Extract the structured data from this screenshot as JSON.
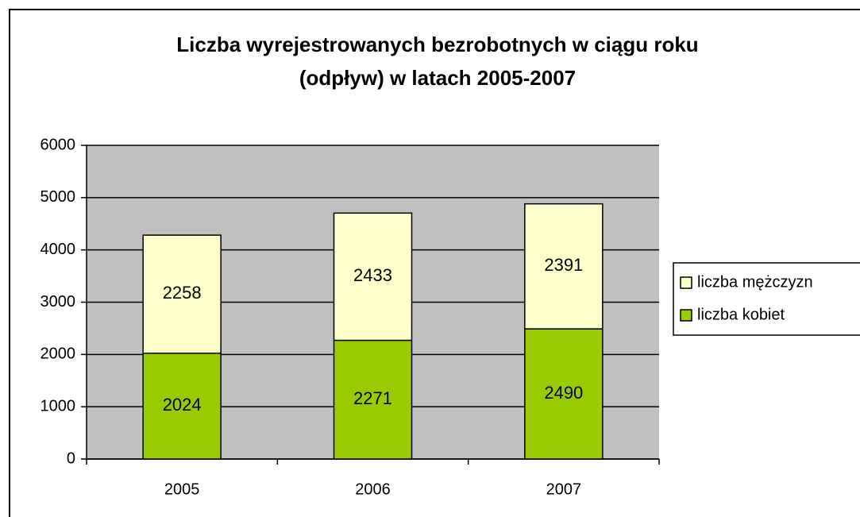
{
  "chart_data": {
    "type": "stacked-bar",
    "title": [
      "Liczba wyrejestrowanych bezrobotnych w ciągu roku",
      "(odpływ) w latach 2005-2007"
    ],
    "categories": [
      "2005",
      "2006",
      "2007"
    ],
    "series": [
      {
        "name": "liczba kobiet",
        "color": "#99cc00",
        "values": [
          2024,
          2271,
          2490
        ]
      },
      {
        "name": "liczba mężczyzn",
        "color": "#ffffcc",
        "values": [
          2258,
          2433,
          2391
        ]
      }
    ],
    "ylim": [
      0,
      6000
    ],
    "yticks": [
      0,
      1000,
      2000,
      3000,
      4000,
      5000,
      6000
    ],
    "grid": true,
    "legend": "right"
  }
}
